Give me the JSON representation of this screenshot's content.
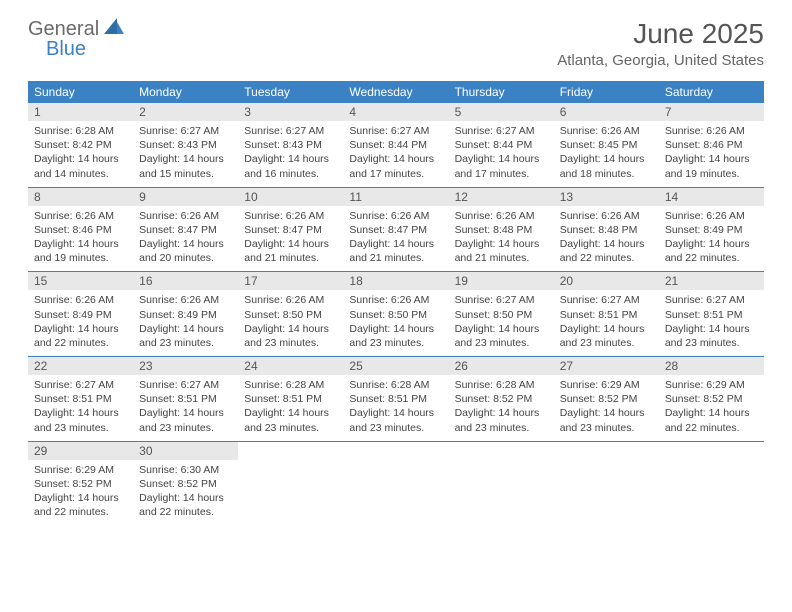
{
  "logo": {
    "part1": "General",
    "part2": "Blue"
  },
  "title": "June 2025",
  "location": "Atlanta, Georgia, United States",
  "header_bg": "#3b82c4",
  "daynum_bg": "#e8e8e8",
  "day_labels": [
    "Sunday",
    "Monday",
    "Tuesday",
    "Wednesday",
    "Thursday",
    "Friday",
    "Saturday"
  ],
  "weeks": [
    [
      {
        "n": "1",
        "sr": "Sunrise: 6:28 AM",
        "ss": "Sunset: 8:42 PM",
        "d1": "Daylight: 14 hours",
        "d2": "and 14 minutes."
      },
      {
        "n": "2",
        "sr": "Sunrise: 6:27 AM",
        "ss": "Sunset: 8:43 PM",
        "d1": "Daylight: 14 hours",
        "d2": "and 15 minutes."
      },
      {
        "n": "3",
        "sr": "Sunrise: 6:27 AM",
        "ss": "Sunset: 8:43 PM",
        "d1": "Daylight: 14 hours",
        "d2": "and 16 minutes."
      },
      {
        "n": "4",
        "sr": "Sunrise: 6:27 AM",
        "ss": "Sunset: 8:44 PM",
        "d1": "Daylight: 14 hours",
        "d2": "and 17 minutes."
      },
      {
        "n": "5",
        "sr": "Sunrise: 6:27 AM",
        "ss": "Sunset: 8:44 PM",
        "d1": "Daylight: 14 hours",
        "d2": "and 17 minutes."
      },
      {
        "n": "6",
        "sr": "Sunrise: 6:26 AM",
        "ss": "Sunset: 8:45 PM",
        "d1": "Daylight: 14 hours",
        "d2": "and 18 minutes."
      },
      {
        "n": "7",
        "sr": "Sunrise: 6:26 AM",
        "ss": "Sunset: 8:46 PM",
        "d1": "Daylight: 14 hours",
        "d2": "and 19 minutes."
      }
    ],
    [
      {
        "n": "8",
        "sr": "Sunrise: 6:26 AM",
        "ss": "Sunset: 8:46 PM",
        "d1": "Daylight: 14 hours",
        "d2": "and 19 minutes."
      },
      {
        "n": "9",
        "sr": "Sunrise: 6:26 AM",
        "ss": "Sunset: 8:47 PM",
        "d1": "Daylight: 14 hours",
        "d2": "and 20 minutes."
      },
      {
        "n": "10",
        "sr": "Sunrise: 6:26 AM",
        "ss": "Sunset: 8:47 PM",
        "d1": "Daylight: 14 hours",
        "d2": "and 21 minutes."
      },
      {
        "n": "11",
        "sr": "Sunrise: 6:26 AM",
        "ss": "Sunset: 8:47 PM",
        "d1": "Daylight: 14 hours",
        "d2": "and 21 minutes."
      },
      {
        "n": "12",
        "sr": "Sunrise: 6:26 AM",
        "ss": "Sunset: 8:48 PM",
        "d1": "Daylight: 14 hours",
        "d2": "and 21 minutes."
      },
      {
        "n": "13",
        "sr": "Sunrise: 6:26 AM",
        "ss": "Sunset: 8:48 PM",
        "d1": "Daylight: 14 hours",
        "d2": "and 22 minutes."
      },
      {
        "n": "14",
        "sr": "Sunrise: 6:26 AM",
        "ss": "Sunset: 8:49 PM",
        "d1": "Daylight: 14 hours",
        "d2": "and 22 minutes."
      }
    ],
    [
      {
        "n": "15",
        "sr": "Sunrise: 6:26 AM",
        "ss": "Sunset: 8:49 PM",
        "d1": "Daylight: 14 hours",
        "d2": "and 22 minutes."
      },
      {
        "n": "16",
        "sr": "Sunrise: 6:26 AM",
        "ss": "Sunset: 8:49 PM",
        "d1": "Daylight: 14 hours",
        "d2": "and 23 minutes."
      },
      {
        "n": "17",
        "sr": "Sunrise: 6:26 AM",
        "ss": "Sunset: 8:50 PM",
        "d1": "Daylight: 14 hours",
        "d2": "and 23 minutes."
      },
      {
        "n": "18",
        "sr": "Sunrise: 6:26 AM",
        "ss": "Sunset: 8:50 PM",
        "d1": "Daylight: 14 hours",
        "d2": "and 23 minutes."
      },
      {
        "n": "19",
        "sr": "Sunrise: 6:27 AM",
        "ss": "Sunset: 8:50 PM",
        "d1": "Daylight: 14 hours",
        "d2": "and 23 minutes."
      },
      {
        "n": "20",
        "sr": "Sunrise: 6:27 AM",
        "ss": "Sunset: 8:51 PM",
        "d1": "Daylight: 14 hours",
        "d2": "and 23 minutes."
      },
      {
        "n": "21",
        "sr": "Sunrise: 6:27 AM",
        "ss": "Sunset: 8:51 PM",
        "d1": "Daylight: 14 hours",
        "d2": "and 23 minutes."
      }
    ],
    [
      {
        "n": "22",
        "sr": "Sunrise: 6:27 AM",
        "ss": "Sunset: 8:51 PM",
        "d1": "Daylight: 14 hours",
        "d2": "and 23 minutes."
      },
      {
        "n": "23",
        "sr": "Sunrise: 6:27 AM",
        "ss": "Sunset: 8:51 PM",
        "d1": "Daylight: 14 hours",
        "d2": "and 23 minutes."
      },
      {
        "n": "24",
        "sr": "Sunrise: 6:28 AM",
        "ss": "Sunset: 8:51 PM",
        "d1": "Daylight: 14 hours",
        "d2": "and 23 minutes."
      },
      {
        "n": "25",
        "sr": "Sunrise: 6:28 AM",
        "ss": "Sunset: 8:51 PM",
        "d1": "Daylight: 14 hours",
        "d2": "and 23 minutes."
      },
      {
        "n": "26",
        "sr": "Sunrise: 6:28 AM",
        "ss": "Sunset: 8:52 PM",
        "d1": "Daylight: 14 hours",
        "d2": "and 23 minutes."
      },
      {
        "n": "27",
        "sr": "Sunrise: 6:29 AM",
        "ss": "Sunset: 8:52 PM",
        "d1": "Daylight: 14 hours",
        "d2": "and 23 minutes."
      },
      {
        "n": "28",
        "sr": "Sunrise: 6:29 AM",
        "ss": "Sunset: 8:52 PM",
        "d1": "Daylight: 14 hours",
        "d2": "and 22 minutes."
      }
    ],
    [
      {
        "n": "29",
        "sr": "Sunrise: 6:29 AM",
        "ss": "Sunset: 8:52 PM",
        "d1": "Daylight: 14 hours",
        "d2": "and 22 minutes."
      },
      {
        "n": "30",
        "sr": "Sunrise: 6:30 AM",
        "ss": "Sunset: 8:52 PM",
        "d1": "Daylight: 14 hours",
        "d2": "and 22 minutes."
      },
      null,
      null,
      null,
      null,
      null
    ]
  ]
}
